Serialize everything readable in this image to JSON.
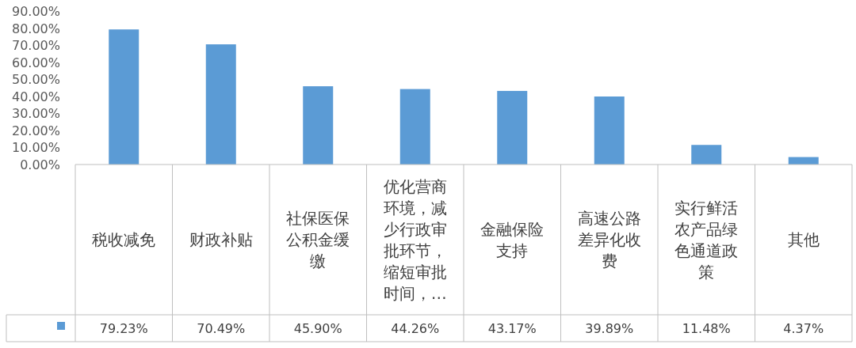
{
  "chart_data": {
    "type": "bar",
    "categories": [
      "税收减免",
      "财政补贴",
      "社保医保公积金缓缴",
      "优化营商环境，减少行政审批环节，缩短审批时间，…",
      "金融保险支持",
      "高速公路差异化收费",
      "实行鲜活农产品绿色通道政策",
      "其他"
    ],
    "values": [
      79.23,
      70.49,
      45.9,
      44.26,
      43.17,
      39.89,
      11.48,
      4.37
    ],
    "value_labels": [
      "79.23%",
      "70.49%",
      "45.90%",
      "44.26%",
      "43.17%",
      "39.89%",
      "11.48%",
      "4.37%"
    ],
    "color": "#5b9bd5",
    "ylim": [
      0,
      90
    ],
    "yticks": [
      {
        "value": 0,
        "label": "0.00%"
      },
      {
        "value": 10,
        "label": "10.00%"
      },
      {
        "value": 20,
        "label": "20.00%"
      },
      {
        "value": 30,
        "label": "30.00%"
      },
      {
        "value": 40,
        "label": "40.00%"
      },
      {
        "value": 50,
        "label": "50.00%"
      },
      {
        "value": 60,
        "label": "60.00%"
      },
      {
        "value": 70,
        "label": "70.00%"
      },
      {
        "value": 80,
        "label": "80.00%"
      },
      {
        "value": 90,
        "label": "90.00%"
      }
    ],
    "grid": false
  }
}
